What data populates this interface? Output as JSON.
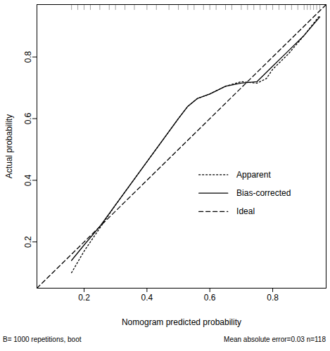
{
  "chart_data": {
    "type": "line",
    "x_label": "Nomogram predicted probability",
    "y_label": "Actual probability",
    "xlim": [
      0.05,
      0.97
    ],
    "ylim": [
      0.05,
      0.97
    ],
    "xticks": [
      0.2,
      0.4,
      0.6,
      0.8
    ],
    "yticks": [
      0.2,
      0.4,
      0.6,
      0.8
    ],
    "grid": false,
    "legend": "right",
    "annotations": [
      "B= 1000 repetitions, boot",
      "Mean absolute error=0.03 n=118"
    ],
    "rug": [
      0.16,
      0.18,
      0.2,
      0.22,
      0.25,
      0.28,
      0.3,
      0.33,
      0.36,
      0.4,
      0.43,
      0.47,
      0.5,
      0.53,
      0.55,
      0.58,
      0.6,
      0.62,
      0.65,
      0.67,
      0.7,
      0.72,
      0.74,
      0.76,
      0.78,
      0.8,
      0.82,
      0.84,
      0.86,
      0.88,
      0.9,
      0.91,
      0.92,
      0.93,
      0.94,
      0.95
    ],
    "series": [
      {
        "name": "Apparent",
        "color": "#000000",
        "line_style": "dotted",
        "x": [
          0.16,
          0.2,
          0.25,
          0.3,
          0.35,
          0.4,
          0.45,
          0.5,
          0.53,
          0.56,
          0.6,
          0.65,
          0.7,
          0.75,
          0.78,
          0.8,
          0.85,
          0.9,
          0.95
        ],
        "values": [
          0.1,
          0.17,
          0.245,
          0.32,
          0.39,
          0.46,
          0.53,
          0.6,
          0.64,
          0.665,
          0.68,
          0.705,
          0.72,
          0.715,
          0.73,
          0.76,
          0.81,
          0.87,
          0.935
        ]
      },
      {
        "name": "Bias-corrected",
        "color": "#000000",
        "line_style": "solid",
        "x": [
          0.16,
          0.2,
          0.25,
          0.3,
          0.35,
          0.4,
          0.45,
          0.5,
          0.53,
          0.56,
          0.6,
          0.65,
          0.7,
          0.75,
          0.77,
          0.8,
          0.85,
          0.9,
          0.95
        ],
        "values": [
          0.14,
          0.19,
          0.25,
          0.32,
          0.39,
          0.46,
          0.53,
          0.6,
          0.64,
          0.665,
          0.68,
          0.705,
          0.715,
          0.72,
          0.74,
          0.77,
          0.82,
          0.87,
          0.93
        ]
      },
      {
        "name": "Ideal",
        "color": "#000000",
        "line_style": "dashed",
        "x": [
          0.05,
          0.97
        ],
        "values": [
          0.05,
          0.97
        ]
      }
    ]
  }
}
